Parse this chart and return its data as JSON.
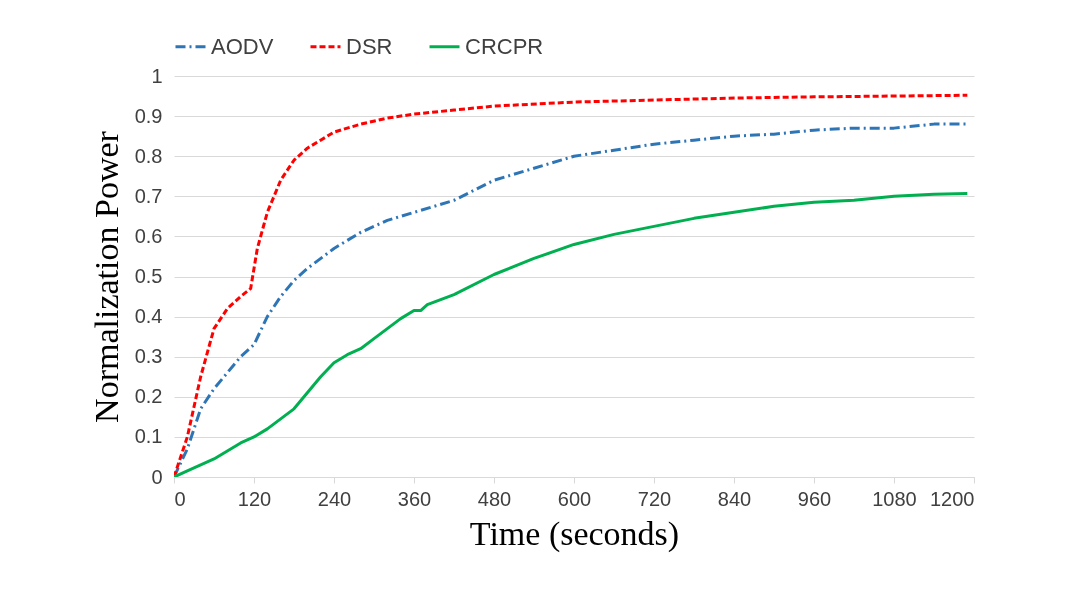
{
  "chart_data": {
    "type": "line",
    "xlabel": "Time (seconds)",
    "ylabel": "Normalization Power",
    "xlim": [
      0,
      1200
    ],
    "xticks": [
      0,
      120,
      240,
      360,
      480,
      600,
      720,
      840,
      960,
      1080,
      1200
    ],
    "ylim": [
      0,
      1
    ],
    "yticks": [
      0,
      0.1,
      0.2,
      0.3,
      0.4,
      0.5,
      0.6,
      0.7,
      0.8,
      0.9,
      1
    ],
    "grid": "y",
    "legend": "top",
    "marker": "none",
    "series": [
      {
        "name": "AODV",
        "color": "#2e75b6",
        "line_style": "dashdot",
        "x": [
          0,
          20,
          40,
          60,
          80,
          100,
          120,
          140,
          160,
          180,
          200,
          240,
          280,
          320,
          360,
          420,
          480,
          540,
          600,
          660,
          720,
          780,
          840,
          900,
          960,
          1020,
          1080,
          1140,
          1190
        ],
        "values": [
          0,
          0.07,
          0.17,
          0.22,
          0.26,
          0.3,
          0.33,
          0.4,
          0.45,
          0.49,
          0.52,
          0.57,
          0.61,
          0.64,
          0.66,
          0.69,
          0.74,
          0.77,
          0.8,
          0.815,
          0.83,
          0.84,
          0.85,
          0.855,
          0.865,
          0.87,
          0.87,
          0.88,
          0.88
        ]
      },
      {
        "name": "DSR",
        "color": "#ff0000",
        "line_style": "dashed",
        "x": [
          0,
          20,
          40,
          60,
          80,
          100,
          115,
          125,
          140,
          160,
          180,
          200,
          240,
          280,
          320,
          360,
          420,
          480,
          600,
          720,
          840,
          960,
          1080,
          1190
        ],
        "values": [
          0,
          0.1,
          0.25,
          0.37,
          0.42,
          0.45,
          0.47,
          0.57,
          0.66,
          0.74,
          0.79,
          0.82,
          0.86,
          0.88,
          0.895,
          0.905,
          0.915,
          0.925,
          0.935,
          0.94,
          0.945,
          0.948,
          0.95,
          0.952
        ]
      },
      {
        "name": "CRCPR",
        "color": "#00b050",
        "line_style": "solid",
        "x": [
          0,
          20,
          40,
          60,
          80,
          100,
          120,
          140,
          160,
          180,
          200,
          220,
          240,
          260,
          280,
          300,
          320,
          340,
          360,
          370,
          380,
          420,
          480,
          540,
          600,
          660,
          720,
          780,
          840,
          900,
          960,
          1020,
          1080,
          1140,
          1190
        ],
        "values": [
          0,
          0.015,
          0.03,
          0.045,
          0.065,
          0.085,
          0.1,
          0.12,
          0.145,
          0.17,
          0.21,
          0.25,
          0.285,
          0.305,
          0.32,
          0.345,
          0.37,
          0.395,
          0.415,
          0.415,
          0.43,
          0.455,
          0.505,
          0.545,
          0.58,
          0.605,
          0.625,
          0.645,
          0.66,
          0.675,
          0.685,
          0.69,
          0.7,
          0.705,
          0.707
        ]
      }
    ]
  }
}
